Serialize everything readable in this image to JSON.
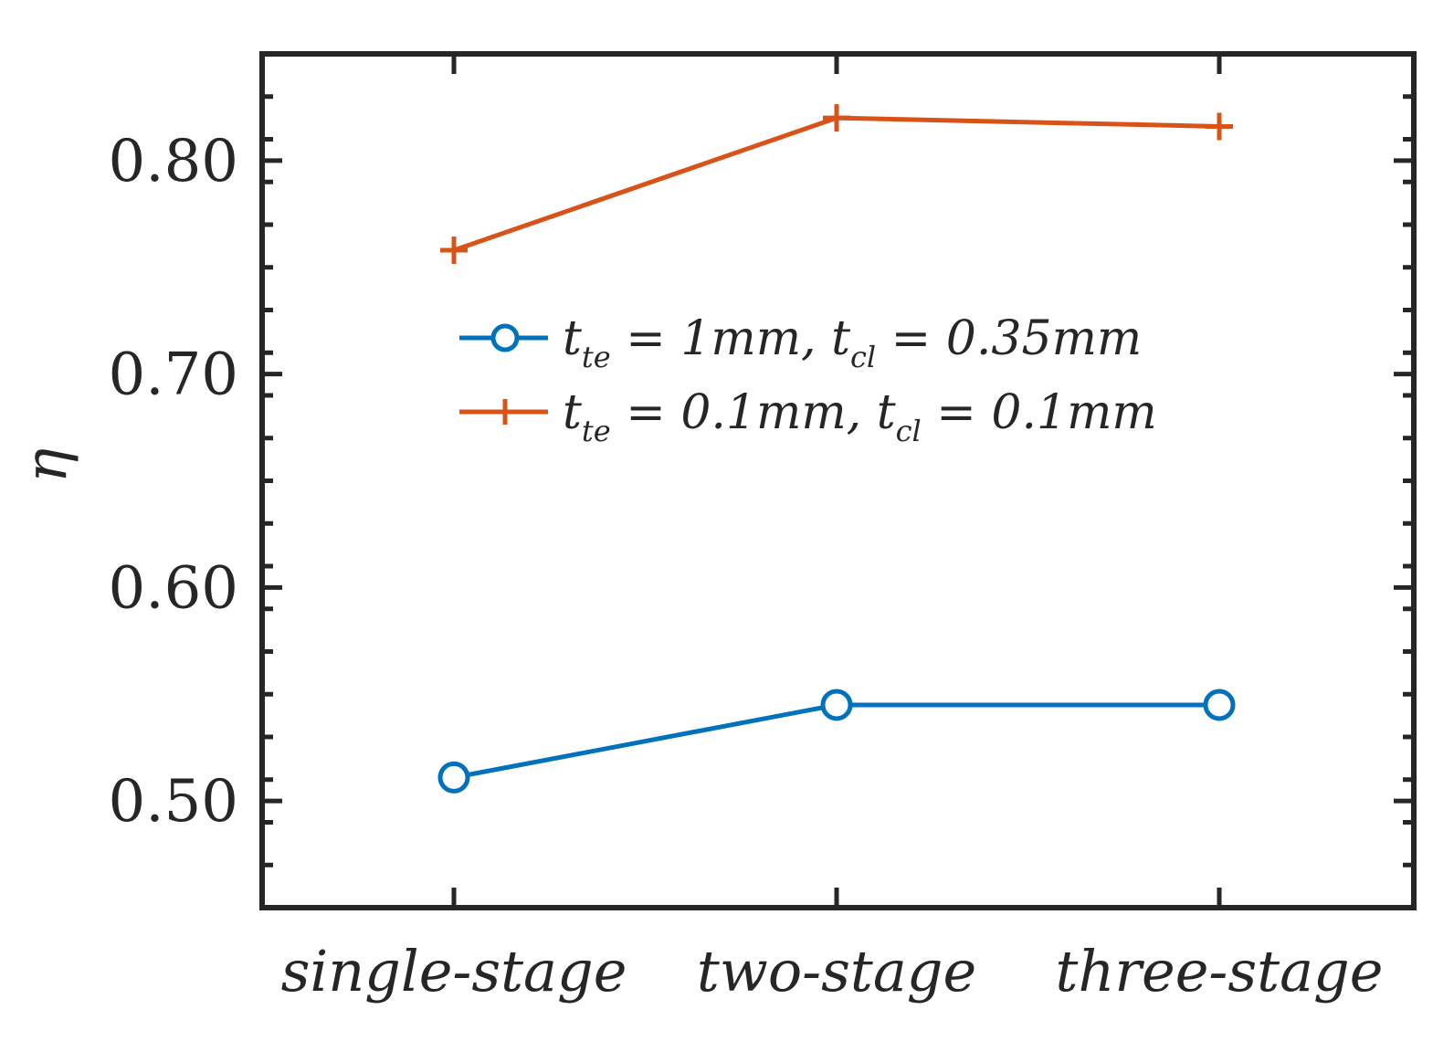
{
  "chart_data": {
    "type": "line",
    "title": "",
    "xlabel": "",
    "ylabel": "η",
    "categories": [
      "single-stage",
      "two-stage",
      "three-stage"
    ],
    "ylim": [
      0.45,
      0.85
    ],
    "yticks": [
      "0.50",
      "0.60",
      "0.70",
      "0.80"
    ],
    "grid": false,
    "legend_position": "center",
    "series": [
      {
        "name": "t_te = 1mm, t_cl = 0.35mm",
        "legend_parts": [
          "t",
          "te",
          " = 1mm, ",
          "t",
          "cl",
          " = 0.35mm"
        ],
        "marker": "circle",
        "color": "#0072BD",
        "values": [
          0.511,
          0.545,
          0.545
        ]
      },
      {
        "name": "t_te = 0.1mm, t_cl = 0.1mm",
        "legend_parts": [
          "t",
          "te",
          " = 0.1mm, ",
          "t",
          "cl",
          " = 0.1mm"
        ],
        "marker": "plus",
        "color": "#D95319",
        "values": [
          0.758,
          0.82,
          0.816
        ]
      }
    ]
  }
}
